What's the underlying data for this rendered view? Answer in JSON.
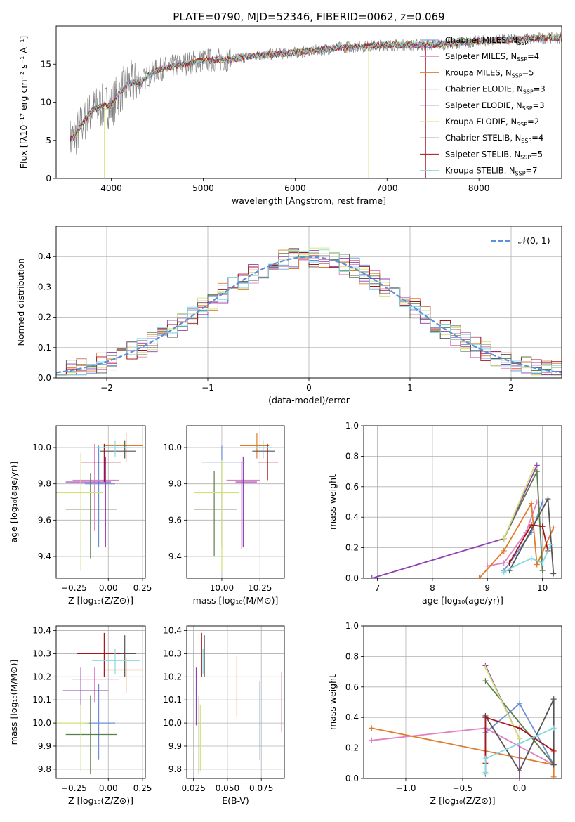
{
  "colors": {
    "Chabrier MILES": "#6a8fd6",
    "Salpeter MILES": "#e27fc0",
    "Kroupa MILES": "#e07b2b",
    "Chabrier ELODIE": "#5b7d4a",
    "Salpeter ELODIE": "#8e3fb3",
    "Kroupa ELODIE": "#d2e275",
    "Chabrier STELIB": "#555555",
    "Salpeter STELIB": "#a3171c",
    "Kroupa STELIB": "#84d9e0",
    "normal": "#5b8fd6",
    "obs": "#808080"
  },
  "chart_data": [
    {
      "id": "spectrum",
      "type": "line",
      "title": "PLATE=0790, MJD=52346, FIBERID=0062, z=0.069",
      "xlabel": "wavelength [Angstrom, rest frame]",
      "ylabel": "Flux [fλ10⁻¹⁷ erg cm⁻² s⁻¹ A⁻¹]",
      "xlim": [
        3400,
        8900
      ],
      "ylim": [
        0,
        20
      ],
      "xticks": [
        4000,
        5000,
        6000,
        7000,
        8000
      ],
      "yticks": [
        0,
        5,
        10,
        15
      ],
      "legend_position": "right",
      "continuum": {
        "x": [
          3550,
          3600,
          3700,
          3800,
          3900,
          4000,
          4100,
          4200,
          4300,
          4400,
          4500,
          4700,
          5000,
          5300,
          5600,
          6000,
          6500,
          7000,
          7500,
          8000,
          8500,
          8900
        ],
        "y": [
          5.0,
          5.5,
          7.5,
          9.0,
          9.5,
          9.5,
          11.5,
          12.5,
          12.5,
          13.5,
          14.2,
          14.8,
          15.5,
          15.6,
          16.2,
          16.5,
          17.2,
          17.5,
          17.5,
          18.0,
          18.3,
          18.5
        ]
      },
      "series": [
        {
          "name": "Chabrier MILES, N",
          "sub": "SSP",
          "suffix": "=4"
        },
        {
          "name": "Salpeter MILES, N",
          "sub": "SSP",
          "suffix": "=4"
        },
        {
          "name": "Kroupa MILES, N",
          "sub": "SSP",
          "suffix": "=5"
        },
        {
          "name": "Chabrier ELODIE, N",
          "sub": "SSP",
          "suffix": "=3"
        },
        {
          "name": "Salpeter ELODIE, N",
          "sub": "SSP",
          "suffix": "=3"
        },
        {
          "name": "Kroupa ELODIE, N",
          "sub": "SSP",
          "suffix": "=2"
        },
        {
          "name": "Chabrier STELIB, N",
          "sub": "SSP",
          "suffix": "=4"
        },
        {
          "name": "Salpeter STELIB, N",
          "sub": "SSP",
          "suffix": "=5"
        },
        {
          "name": "Kroupa STELIB, N",
          "sub": "SSP",
          "suffix": "=7"
        }
      ]
    },
    {
      "id": "residuals",
      "type": "histogram",
      "xlabel": "(data-model)/error",
      "ylabel": "Normed distribution",
      "xlim": [
        -2.5,
        2.5
      ],
      "ylim": [
        0,
        0.5
      ],
      "xticks": [
        -2,
        -1,
        0,
        1,
        2
      ],
      "yticks": [
        0.0,
        0.1,
        0.2,
        0.3,
        0.4
      ],
      "grid": true,
      "legend_position": "top-right",
      "legend": "𝒩(0, 1)",
      "bin_width": 0.1
    },
    {
      "id": "age-vs-z",
      "type": "errorbar",
      "xlabel": "Z [log₁₀(Z/Z⊙)]",
      "ylabel": "age  [log₁₀(age/yr)]",
      "xlim": [
        -0.38,
        0.27
      ],
      "ylim": [
        9.28,
        10.12
      ],
      "xticks": [
        -0.25,
        0.0,
        0.25
      ],
      "yticks": [
        9.4,
        9.6,
        9.8,
        10.0
      ],
      "grid": true,
      "points": [
        {
          "s": "Chabrier MILES",
          "x": -0.07,
          "xe": [
            0.1,
            0.12
          ],
          "y": 9.8,
          "ye": [
            0.35,
            0.21
          ]
        },
        {
          "s": "Salpeter MILES",
          "x": -0.1,
          "xe": [
            0.16,
            0.18
          ],
          "y": 9.82,
          "ye": [
            0.28,
            0.2
          ]
        },
        {
          "s": "Kroupa MILES",
          "x": 0.13,
          "xe": [
            0.16,
            0.12
          ],
          "y": 10.01,
          "ye": [
            0.09,
            0.07
          ]
        },
        {
          "s": "Chabrier ELODIE",
          "x": -0.13,
          "xe": [
            0.18,
            0.19
          ],
          "y": 9.66,
          "ye": [
            0.27,
            0.2
          ]
        },
        {
          "s": "Salpeter ELODIE",
          "x": -0.02,
          "xe": [
            0.29,
            0.04
          ],
          "y": 9.81,
          "ye": [
            0.36,
            0.14
          ]
        },
        {
          "s": "Kroupa ELODIE",
          "x": -0.2,
          "xe": [
            0.18,
            0.16
          ],
          "y": 9.75,
          "ye": [
            0.43,
            0.22
          ]
        },
        {
          "s": "Chabrier STELIB",
          "x": 0.12,
          "xe": [
            0.18,
            0.08
          ],
          "y": 9.98,
          "ye": [
            0.04,
            0.06
          ]
        },
        {
          "s": "Salpeter STELIB",
          "x": -0.03,
          "xe": [
            0.17,
            0.12
          ],
          "y": 9.92,
          "ye": [
            0.11,
            0.1
          ]
        },
        {
          "s": "Kroupa STELIB",
          "x": 0.05,
          "xe": [
            0.14,
            0.12
          ],
          "y": 10.0,
          "ye": [
            0.05,
            0.04
          ]
        }
      ]
    },
    {
      "id": "age-vs-mass",
      "type": "errorbar",
      "xlabel": "mass [log₁₀(M/M⊙)]",
      "ylabel": "",
      "xlim": [
        9.77,
        10.41
      ],
      "ylim": [
        9.28,
        10.12
      ],
      "xticks": [
        10.0,
        10.25
      ],
      "yticks": [
        9.4,
        9.6,
        9.8,
        10.0
      ],
      "grid": true,
      "points": [
        {
          "s": "Chabrier MILES",
          "x": 10.0,
          "xe": [
            0.13,
            0.15
          ],
          "y": 9.92,
          "ye": [
            0.47,
            0.09
          ]
        },
        {
          "s": "Salpeter MILES",
          "x": 10.13,
          "xe": [
            0.1,
            0.12
          ],
          "y": 9.82,
          "ye": [
            0.38,
            0.1
          ]
        },
        {
          "s": "Kroupa MILES",
          "x": 10.23,
          "xe": [
            0.11,
            0.08
          ],
          "y": 10.01,
          "ye": [
            0.07,
            0.07
          ]
        },
        {
          "s": "Chabrier ELODIE",
          "x": 9.95,
          "xe": [
            0.13,
            0.15
          ],
          "y": 9.66,
          "ye": [
            0.26,
            0.21
          ]
        },
        {
          "s": "Salpeter ELODIE",
          "x": 10.14,
          "xe": [
            0.05,
            0.09
          ],
          "y": 9.81,
          "ye": [
            0.36,
            0.14
          ]
        },
        {
          "s": "Kroupa ELODIE",
          "x": 10.0,
          "xe": [
            0.18,
            0.11
          ],
          "y": 9.75,
          "ye": [
            0.43,
            0.18
          ]
        },
        {
          "s": "Chabrier STELIB",
          "x": 10.27,
          "xe": [
            0.07,
            0.08
          ],
          "y": 9.98,
          "ye": [
            0.04,
            0.06
          ]
        },
        {
          "s": "Salpeter STELIB",
          "x": 10.3,
          "xe": [
            0.06,
            0.07
          ],
          "y": 9.92,
          "ye": [
            0.1,
            0.1
          ]
        },
        {
          "s": "Kroupa STELIB",
          "x": 10.27,
          "xe": [
            0.05,
            0.06
          ],
          "y": 10.0,
          "ye": [
            0.05,
            0.04
          ]
        }
      ]
    },
    {
      "id": "weight-vs-age",
      "type": "line",
      "xlabel": "age  [log₁₀(age/yr)]",
      "ylabel": "mass weight",
      "xlim": [
        6.75,
        10.35
      ],
      "ylim": [
        0,
        1
      ],
      "xticks": [
        7,
        8,
        9,
        10
      ],
      "yticks": [
        0.0,
        0.2,
        0.4,
        0.6,
        0.8,
        1.0
      ],
      "grid": true,
      "series": [
        {
          "s": "Chabrier MILES",
          "x": [
            9.3,
            9.5,
            9.8,
            10.0
          ],
          "y": [
            0.05,
            0.15,
            0.3,
            0.5
          ]
        },
        {
          "s": "Salpeter MILES",
          "x": [
            9.0,
            9.3,
            9.7,
            9.9
          ],
          "y": [
            0.08,
            0.1,
            0.3,
            0.5
          ]
        },
        {
          "s": "Kroupa MILES",
          "x": [
            8.85,
            9.3,
            9.8,
            9.9,
            10.2
          ],
          "y": [
            0.0,
            0.18,
            0.49,
            0.09,
            0.33
          ]
        },
        {
          "s": "Chabrier ELODIE",
          "x": [
            9.3,
            9.9,
            10.0
          ],
          "y": [
            0.26,
            0.7,
            0.05
          ]
        },
        {
          "s": "Salpeter ELODIE",
          "x": [
            6.9,
            9.3,
            9.9
          ],
          "y": [
            0.0,
            0.26,
            0.74
          ]
        },
        {
          "s": "Kroupa ELODIE",
          "x": [
            9.3,
            9.85
          ],
          "y": [
            0.26,
            0.73
          ]
        },
        {
          "s": "Chabrier STELIB",
          "x": [
            9.4,
            10.1,
            10.2
          ],
          "y": [
            0.05,
            0.52,
            0.03
          ]
        },
        {
          "s": "Salpeter STELIB",
          "x": [
            9.4,
            9.8,
            10.0,
            10.1
          ],
          "y": [
            0.1,
            0.35,
            0.34,
            0.18
          ]
        },
        {
          "s": "Kroupa STELIB",
          "x": [
            9.3,
            9.5,
            9.8,
            10.0,
            10.15
          ],
          "y": [
            0.04,
            0.08,
            0.13,
            0.1,
            0.22
          ]
        }
      ]
    },
    {
      "id": "mass-vs-z",
      "type": "errorbar",
      "xlabel": "Z [log₁₀(Z/Z⊙)]",
      "ylabel": "mass [log₁₀(M/M⊙)]",
      "xlim": [
        -0.38,
        0.27
      ],
      "ylim": [
        9.76,
        10.42
      ],
      "xticks": [
        -0.25,
        0.0,
        0.25
      ],
      "yticks": [
        9.8,
        9.9,
        10.0,
        10.1,
        10.2,
        10.3,
        10.4
      ],
      "grid": true,
      "points": [
        {
          "s": "Chabrier MILES",
          "x": -0.07,
          "xe": [
            0.1,
            0.12
          ],
          "y": 10.0,
          "ye": [
            0.16,
            0.17
          ]
        },
        {
          "s": "Salpeter MILES",
          "x": -0.1,
          "xe": [
            0.16,
            0.18
          ],
          "y": 10.19,
          "ye": [
            0.1,
            0.05
          ]
        },
        {
          "s": "Kroupa MILES",
          "x": 0.13,
          "xe": [
            0.16,
            0.12
          ],
          "y": 10.23,
          "ye": [
            0.1,
            0.05
          ]
        },
        {
          "s": "Chabrier ELODIE",
          "x": -0.13,
          "xe": [
            0.18,
            0.19
          ],
          "y": 9.95,
          "ye": [
            0.17,
            0.17
          ]
        },
        {
          "s": "Salpeter ELODIE",
          "x": -0.2,
          "xe": [
            0.13,
            0.2
          ],
          "y": 10.14,
          "ye": [
            0.15,
            0.1
          ]
        },
        {
          "s": "Kroupa ELODIE",
          "x": -0.2,
          "xe": [
            0.18,
            0.06
          ],
          "y": 10.0,
          "ye": [
            0.21,
            0.08
          ]
        },
        {
          "s": "Chabrier STELIB",
          "x": 0.12,
          "xe": [
            0.18,
            0.08
          ],
          "y": 10.3,
          "ye": [
            0.1,
            0.08
          ]
        },
        {
          "s": "Salpeter STELIB",
          "x": -0.03,
          "xe": [
            0.2,
            0.12
          ],
          "y": 10.3,
          "ye": [
            0.1,
            0.09
          ]
        },
        {
          "s": "Kroupa STELIB",
          "x": 0.05,
          "xe": [
            0.17,
            0.18
          ],
          "y": 10.27,
          "ye": [
            0.06,
            0.05
          ]
        }
      ]
    },
    {
      "id": "mass-vs-ebv",
      "type": "errorbar",
      "xlabel": "E(B-V)",
      "ylabel": "",
      "xlim": [
        0.02,
        0.092
      ],
      "ylim": [
        9.76,
        10.42
      ],
      "xticks": [
        0.025,
        0.05,
        0.075
      ],
      "yticks": [
        9.8,
        9.9,
        10.0,
        10.1,
        10.2,
        10.3,
        10.4
      ],
      "grid": true,
      "points": [
        {
          "s": "Chabrier MILES",
          "x": 0.074,
          "xe": [
            0,
            0
          ],
          "y": 10.0,
          "ye": [
            0.16,
            0.18
          ]
        },
        {
          "s": "Salpeter MILES",
          "x": 0.09,
          "xe": [
            0,
            0
          ],
          "y": 10.1,
          "ye": [
            0.14,
            0.12
          ]
        },
        {
          "s": "Kroupa MILES",
          "x": 0.057,
          "xe": [
            0,
            0
          ],
          "y": 10.16,
          "ye": [
            0.13,
            0.13
          ]
        },
        {
          "s": "Chabrier ELODIE",
          "x": 0.029,
          "xe": [
            0,
            0
          ],
          "y": 9.95,
          "ye": [
            0.17,
            0.17
          ]
        },
        {
          "s": "Salpeter ELODIE",
          "x": 0.027,
          "xe": [
            0,
            0
          ],
          "y": 10.14,
          "ye": [
            0.15,
            0.1
          ]
        },
        {
          "s": "Kroupa ELODIE",
          "x": 0.03,
          "xe": [
            0,
            0
          ],
          "y": 10.0,
          "ye": [
            0.21,
            0.08
          ]
        },
        {
          "s": "Chabrier STELIB",
          "x": 0.033,
          "xe": [
            0,
            0
          ],
          "y": 10.29,
          "ye": [
            0.09,
            0.09
          ]
        },
        {
          "s": "Salpeter STELIB",
          "x": 0.031,
          "xe": [
            0,
            0
          ],
          "y": 10.3,
          "ye": [
            0.1,
            0.09
          ]
        },
        {
          "s": "Kroupa STELIB",
          "x": 0.032,
          "xe": [
            0,
            0
          ],
          "y": 10.27,
          "ye": [
            0.06,
            0.05
          ]
        }
      ]
    },
    {
      "id": "weight-vs-z",
      "type": "line",
      "xlabel": "Z [log₁₀(Z/Z⊙)]",
      "ylabel": "mass weight",
      "xlim": [
        -1.37,
        0.37
      ],
      "ylim": [
        0,
        1
      ],
      "xticks": [
        -1.0,
        -0.5,
        0.0
      ],
      "yticks": [
        0.0,
        0.2,
        0.4,
        0.6,
        0.8,
        1.0
      ],
      "grid": true,
      "series": [
        {
          "s": "Chabrier MILES",
          "x": [
            -0.3,
            0.0,
            0.3
          ],
          "y": [
            0.3,
            0.49,
            0.09
          ]
        },
        {
          "s": "Salpeter MILES",
          "x": [
            -1.3,
            -0.3,
            0.3
          ],
          "y": [
            0.25,
            0.33,
            0.09
          ]
        },
        {
          "s": "Kroupa MILES",
          "x": [
            -1.3,
            0.3,
            0.3
          ],
          "y": [
            0.33,
            0.09,
            0.01
          ]
        },
        {
          "s": "Chabrier ELODIE",
          "x": [
            -0.3,
            0.3
          ],
          "y": [
            0.64,
            0.09
          ]
        },
        {
          "s": "Salpeter ELODIE",
          "x": [
            -0.3,
            0.0,
            0.0
          ],
          "y": [
            0.74,
            0.26,
            0.0
          ]
        },
        {
          "s": "Kroupa ELODIE",
          "x": [
            -0.3,
            0.0
          ],
          "y": [
            0.73,
            0.26
          ]
        },
        {
          "s": "Chabrier STELIB",
          "x": [
            -0.3,
            -0.3,
            0.0,
            0.3,
            0.3
          ],
          "y": [
            0.03,
            0.41,
            0.05,
            0.52,
            0.09
          ]
        },
        {
          "s": "Salpeter STELIB",
          "x": [
            -0.3,
            -0.3,
            0.0,
            0.3
          ],
          "y": [
            0.1,
            0.4,
            0.33,
            0.18
          ]
        },
        {
          "s": "Kroupa STELIB",
          "x": [
            -0.3,
            -0.3,
            0.0,
            0.3
          ],
          "y": [
            0.04,
            0.13,
            0.23,
            0.33
          ]
        }
      ]
    }
  ]
}
